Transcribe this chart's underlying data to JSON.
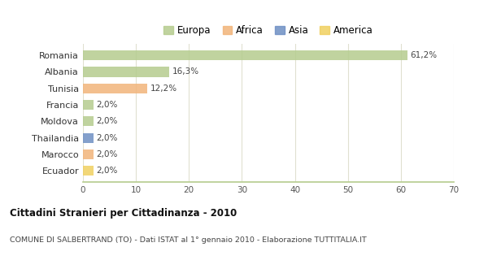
{
  "categories": [
    "Romania",
    "Albania",
    "Tunisia",
    "Francia",
    "Moldova",
    "Thailandia",
    "Marocco",
    "Ecuador"
  ],
  "values": [
    61.2,
    16.3,
    12.2,
    2.0,
    2.0,
    2.0,
    2.0,
    2.0
  ],
  "labels": [
    "61,2%",
    "16,3%",
    "12,2%",
    "2,0%",
    "2,0%",
    "2,0%",
    "2,0%",
    "2,0%"
  ],
  "colors": [
    "#b5cc8e",
    "#b5cc8e",
    "#f2b47a",
    "#b5cc8e",
    "#b5cc8e",
    "#6e8fc4",
    "#f2b47a",
    "#f0d060"
  ],
  "legend_labels": [
    "Europa",
    "Africa",
    "Asia",
    "America"
  ],
  "legend_colors": [
    "#b5cc8e",
    "#f2b47a",
    "#6e8fc4",
    "#f0d060"
  ],
  "title": "Cittadini Stranieri per Cittadinanza - 2010",
  "subtitle": "COMUNE DI SALBERTRAND (TO) - Dati ISTAT al 1° gennaio 2010 - Elaborazione TUTTITALIA.IT",
  "xlim": [
    0,
    70
  ],
  "xticks": [
    0,
    10,
    20,
    30,
    40,
    50,
    60,
    70
  ],
  "background_color": "#ffffff",
  "plot_background": "#ffffff",
  "grid_color": "#e0e0d0",
  "bar_height": 0.6
}
